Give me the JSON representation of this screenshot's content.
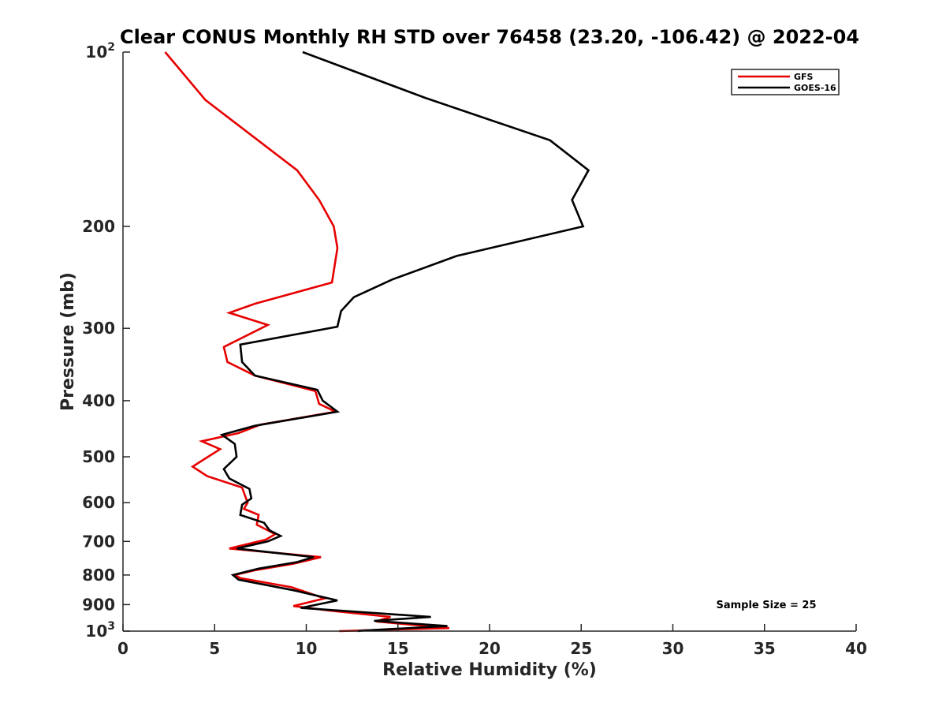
{
  "chart_data": {
    "type": "line",
    "title": "Clear CONUS Monthly RH STD over 76458 (23.20, -106.42) @ 2022-04",
    "xlabel": "Relative Humidity (%)",
    "ylabel": "Pressure (mb)",
    "xlim": [
      0,
      40
    ],
    "ylim": [
      100,
      1000
    ],
    "y_scale": "log",
    "y_reversed": true,
    "x_ticks": [
      "0",
      "5",
      "10",
      "15",
      "20",
      "25",
      "30",
      "35",
      "40"
    ],
    "y_ticks": [
      {
        "value": 100,
        "label": "10",
        "sup": "2"
      },
      {
        "value": 200,
        "label": "200",
        "sup": ""
      },
      {
        "value": 300,
        "label": "300",
        "sup": ""
      },
      {
        "value": 400,
        "label": "400",
        "sup": ""
      },
      {
        "value": 500,
        "label": "500",
        "sup": ""
      },
      {
        "value": 600,
        "label": "600",
        "sup": ""
      },
      {
        "value": 700,
        "label": "700",
        "sup": ""
      },
      {
        "value": 800,
        "label": "800",
        "sup": ""
      },
      {
        "value": 900,
        "label": "900",
        "sup": ""
      },
      {
        "value": 1000,
        "label": "10",
        "sup": "3"
      }
    ],
    "legend_position": "top-right",
    "grid": false,
    "annotation": "Sample Size = 25",
    "series": [
      {
        "name": "GFS",
        "color": "#e60000",
        "points": [
          [
            2.3,
            100
          ],
          [
            4.5,
            121
          ],
          [
            9.5,
            160
          ],
          [
            10.7,
            180
          ],
          [
            11.5,
            200
          ],
          [
            11.7,
            218
          ],
          [
            11.4,
            250
          ],
          [
            7.2,
            272
          ],
          [
            5.8,
            282
          ],
          [
            7.9,
            296
          ],
          [
            5.5,
            323
          ],
          [
            5.7,
            343
          ],
          [
            7.2,
            362
          ],
          [
            10.5,
            385
          ],
          [
            10.7,
            405
          ],
          [
            11.6,
            418
          ],
          [
            7.5,
            440
          ],
          [
            6.3,
            455
          ],
          [
            4.3,
            470
          ],
          [
            5.3,
            485
          ],
          [
            3.8,
            520
          ],
          [
            4.6,
            540
          ],
          [
            6.5,
            565
          ],
          [
            6.8,
            600
          ],
          [
            6.6,
            615
          ],
          [
            7.4,
            630
          ],
          [
            7.3,
            655
          ],
          [
            8.3,
            680
          ],
          [
            7.8,
            695
          ],
          [
            5.8,
            720
          ],
          [
            10.8,
            745
          ],
          [
            9.3,
            765
          ],
          [
            7.2,
            785
          ],
          [
            6.1,
            800
          ],
          [
            6.4,
            810
          ],
          [
            9.2,
            840
          ],
          [
            11.0,
            878
          ],
          [
            9.3,
            905
          ],
          [
            11.3,
            922
          ],
          [
            14.6,
            945
          ],
          [
            13.8,
            962
          ],
          [
            17.8,
            988
          ],
          [
            15.0,
            993
          ],
          [
            11.8,
            1000
          ]
        ]
      },
      {
        "name": "GOES-16",
        "color": "#000000",
        "points": [
          [
            9.8,
            100
          ],
          [
            16.5,
            120
          ],
          [
            23.3,
            142
          ],
          [
            25.4,
            160
          ],
          [
            24.5,
            180
          ],
          [
            25.1,
            200
          ],
          [
            18.2,
            225
          ],
          [
            14.7,
            247
          ],
          [
            12.6,
            265
          ],
          [
            11.9,
            280
          ],
          [
            11.7,
            298
          ],
          [
            6.4,
            320
          ],
          [
            6.5,
            343
          ],
          [
            7.2,
            362
          ],
          [
            10.6,
            383
          ],
          [
            10.9,
            400
          ],
          [
            11.7,
            418
          ],
          [
            7.2,
            442
          ],
          [
            5.4,
            458
          ],
          [
            6.1,
            475
          ],
          [
            6.2,
            500
          ],
          [
            5.5,
            525
          ],
          [
            5.8,
            545
          ],
          [
            6.9,
            568
          ],
          [
            7.0,
            590
          ],
          [
            6.5,
            605
          ],
          [
            6.4,
            630
          ],
          [
            7.7,
            650
          ],
          [
            8.0,
            670
          ],
          [
            8.6,
            685
          ],
          [
            7.9,
            700
          ],
          [
            6.2,
            720
          ],
          [
            10.4,
            745
          ],
          [
            9.5,
            760
          ],
          [
            7.4,
            780
          ],
          [
            6.0,
            800
          ],
          [
            6.3,
            815
          ],
          [
            9.3,
            850
          ],
          [
            11.7,
            885
          ],
          [
            9.7,
            912
          ],
          [
            16.8,
            945
          ],
          [
            13.7,
            960
          ],
          [
            17.7,
            980
          ],
          [
            13.0,
            998
          ],
          [
            12.8,
            1000
          ]
        ]
      }
    ]
  }
}
